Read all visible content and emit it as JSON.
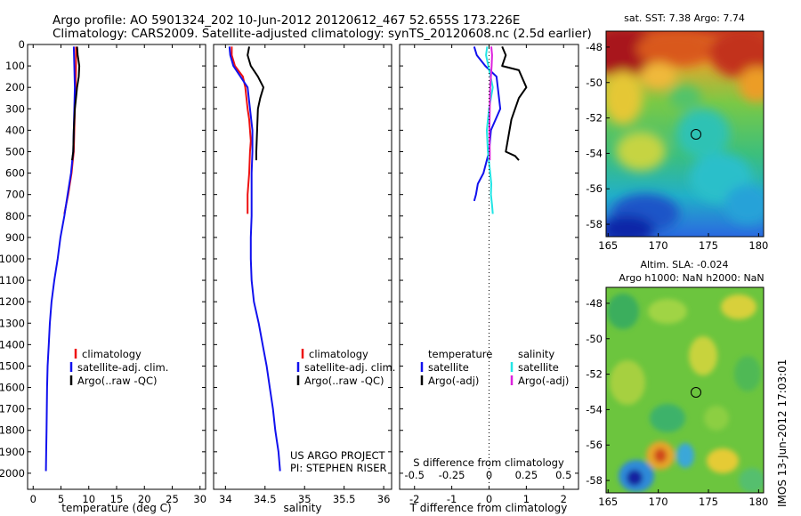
{
  "header": {
    "line1": "Argo profile: AO 5901324_202 10-Jun-2012 20120612_467 52.655S 173.226E",
    "line2": "Climatology: CARS2009. Satellite-adjusted climatology: synTS_20120608.nc (2.5d earlier)"
  },
  "credit": "IMOS 13-Jun-2012 17:03:01",
  "colors": {
    "climatology": "#ee1111",
    "satellite": "#1111ee",
    "argo": "#000000",
    "satellite_s": "#22e5e5",
    "argo_s": "#dd22dd",
    "zero_line": "#000000"
  },
  "chart_data": [
    {
      "type": "line",
      "xlabel": "temperature (deg C)",
      "ylabel": "",
      "xlim": [
        -1,
        31
      ],
      "ylim": [
        2075,
        0
      ],
      "xticks": [
        0,
        5,
        10,
        15,
        20,
        25,
        30
      ],
      "yticks": [
        0,
        100,
        200,
        300,
        400,
        500,
        600,
        700,
        800,
        900,
        1000,
        1100,
        1200,
        1300,
        1400,
        1500,
        1600,
        1700,
        1800,
        1900,
        2000
      ],
      "legend": [
        "climatology",
        "satellite-adj. clim.",
        "Argo(..raw -QC)"
      ],
      "series": [
        {
          "name": "climatology",
          "color": "#ee1111",
          "x": [
            7.7,
            7.7,
            7.6,
            7.5,
            7.4,
            7.3,
            7.1,
            6.9,
            6.6,
            6.3,
            5.6
          ],
          "y": [
            10,
            100,
            200,
            300,
            400,
            500,
            550,
            600,
            650,
            700,
            790
          ]
        },
        {
          "name": "satellite-adj. clim.",
          "color": "#1111ee",
          "x": [
            7.3,
            7.4,
            7.5,
            7.4,
            7.3,
            7.2,
            7.0,
            6.8,
            6.5,
            6.2,
            5.6,
            4.9,
            4.4,
            3.8,
            3.3,
            3.0,
            2.8,
            2.6,
            2.5,
            2.45,
            2.4,
            2.35,
            2.3
          ],
          "y": [
            10,
            100,
            200,
            300,
            400,
            500,
            550,
            600,
            650,
            700,
            800,
            900,
            1000,
            1100,
            1200,
            1300,
            1400,
            1500,
            1600,
            1700,
            1800,
            1900,
            1990
          ]
        },
        {
          "name": "Argo(..raw -QC)",
          "color": "#000000",
          "x": [
            7.9,
            8.0,
            8.3,
            8.2,
            7.9,
            7.7,
            7.5,
            7.3,
            7.2,
            7.0
          ],
          "y": [
            10,
            50,
            100,
            150,
            200,
            250,
            300,
            400,
            500,
            540
          ]
        }
      ]
    },
    {
      "type": "line",
      "xlabel": "salinity",
      "ylabel": "",
      "xlim": [
        33.85,
        36.1
      ],
      "ylim": [
        2075,
        0
      ],
      "xticks": [
        34,
        34.5,
        35,
        35.5,
        36
      ],
      "xticklabels": [
        "34",
        "34.5",
        "35",
        "35.5",
        "36"
      ],
      "legend": [
        "climatology",
        "satellite-adj. clim.",
        "Argo(..raw -QC)"
      ],
      "annotations": [
        "US ARGO PROJECT",
        "PI: STEPHEN RISER"
      ],
      "series": [
        {
          "name": "climatology",
          "color": "#ee1111",
          "x": [
            34.08,
            34.08,
            34.12,
            34.22,
            34.25,
            34.28,
            34.3,
            34.31,
            34.32,
            34.31,
            34.3,
            34.29,
            34.28,
            34.28
          ],
          "y": [
            10,
            50,
            100,
            150,
            200,
            300,
            350,
            400,
            450,
            500,
            600,
            650,
            700,
            790
          ]
        },
        {
          "name": "satellite-adj. clim.",
          "color": "#1111ee",
          "x": [
            34.05,
            34.06,
            34.1,
            34.28,
            34.31,
            34.34,
            34.34,
            34.33,
            34.33,
            34.33,
            34.32,
            34.32,
            34.33,
            34.36,
            34.42,
            34.47,
            34.52,
            34.56,
            34.6,
            34.63,
            34.65,
            34.67,
            34.69
          ],
          "y": [
            10,
            50,
            100,
            200,
            300,
            400,
            500,
            600,
            700,
            800,
            900,
            1000,
            1100,
            1200,
            1300,
            1400,
            1500,
            1600,
            1700,
            1800,
            1850,
            1900,
            1990
          ]
        },
        {
          "name": "Argo(..raw -QC)",
          "color": "#000000",
          "x": [
            34.3,
            34.28,
            34.32,
            34.41,
            34.48,
            34.44,
            34.41,
            34.4,
            34.39,
            34.39
          ],
          "y": [
            10,
            50,
            100,
            150,
            200,
            250,
            300,
            400,
            500,
            540
          ]
        }
      ]
    },
    {
      "type": "line",
      "xlabel": "T difference from climatology",
      "top_axis_label": "S difference from climatology",
      "ylabel": "",
      "xlim": [
        -2.4,
        2.4
      ],
      "ylim": [
        2075,
        0
      ],
      "xticks": [
        -2,
        -1,
        0,
        1,
        2
      ],
      "s_xticks": [
        "-0.5",
        "-0.25",
        "0",
        "0.25",
        "0.5"
      ],
      "legend_groups": [
        "temperature",
        "salinity"
      ],
      "legend": [
        "satellite",
        "Argo(-adj)",
        "satellite",
        "Argo(-adj)"
      ],
      "series": [
        {
          "name": "satellite",
          "quantity": "temperature",
          "color": "#1111ee",
          "x": [
            -0.4,
            -0.33,
            -0.1,
            0.2,
            0.3,
            0.05,
            0.0,
            -0.15,
            -0.3,
            -0.35,
            -0.4
          ],
          "y": [
            10,
            50,
            100,
            150,
            300,
            400,
            500,
            600,
            650,
            700,
            730
          ]
        },
        {
          "name": "Argo(-adj)",
          "quantity": "temperature",
          "color": "#000000",
          "x": [
            0.35,
            0.45,
            0.35,
            0.8,
            1.0,
            0.8,
            0.6,
            0.5,
            0.45,
            0.7,
            0.8
          ],
          "y": [
            10,
            50,
            100,
            120,
            200,
            250,
            350,
            450,
            500,
            520,
            540
          ]
        },
        {
          "name": "satellite",
          "quantity": "salinity",
          "color": "#22e5e5",
          "x": [
            -0.05,
            -0.08,
            -0.02,
            0.1,
            0.0,
            -0.06,
            -0.03,
            0.03,
            0.06,
            0.05,
            0.08,
            0.1
          ],
          "y": [
            10,
            50,
            100,
            200,
            300,
            400,
            500,
            600,
            650,
            700,
            750,
            790
          ]
        },
        {
          "name": "Argo(-adj)",
          "quantity": "salinity",
          "color": "#dd22dd",
          "x": [
            0.06,
            0.08,
            0.07,
            0.05,
            0.03,
            0.02,
            0.01,
            0.02,
            0.02
          ],
          "y": [
            10,
            50,
            100,
            150,
            200,
            300,
            400,
            500,
            540
          ]
        }
      ]
    },
    {
      "type": "heatmap",
      "title": "sat. SST: 7.38 Argo: 7.74",
      "xlim": [
        164.8,
        180.5
      ],
      "ylim": [
        -58.7,
        -47.1
      ],
      "xticks": [
        165,
        170,
        175,
        180
      ],
      "yticks": [
        -48,
        -50,
        -52,
        -54,
        -56,
        -58
      ],
      "marker": {
        "lon": 173.226,
        "lat": -52.655
      }
    },
    {
      "type": "heatmap",
      "title": "Altim. SLA: -0.024",
      "subtitle": "Argo h1000: NaN h2000: NaN",
      "xlim": [
        164.8,
        180.5
      ],
      "ylim": [
        -58.7,
        -47.1
      ],
      "xticks": [
        165,
        170,
        175,
        180
      ],
      "yticks": [
        -48,
        -50,
        -52,
        -54,
        -56,
        -58
      ],
      "marker": {
        "lon": 173.226,
        "lat": -52.655
      }
    }
  ]
}
